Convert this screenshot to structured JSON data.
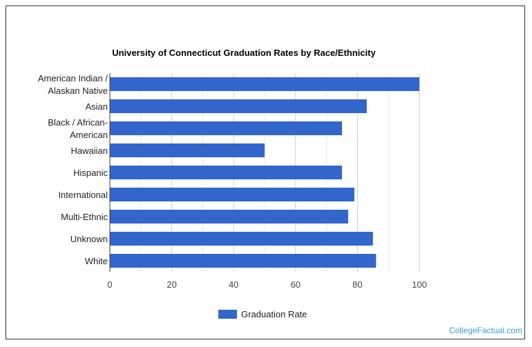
{
  "chart_data": {
    "type": "bar",
    "orientation": "horizontal",
    "title": "University of Connecticut Graduation Rates by Race/Ethnicity",
    "categories": [
      [
        "American Indian /",
        "Alaskan Native"
      ],
      [
        "Asian"
      ],
      [
        "Black / African-",
        "American"
      ],
      [
        "Hawaiian"
      ],
      [
        "Hispanic"
      ],
      [
        "International"
      ],
      [
        "Multi-Ethnic"
      ],
      [
        "Unknown"
      ],
      [
        "White"
      ]
    ],
    "series": [
      {
        "name": "Graduation Rate",
        "values": [
          100,
          83,
          75,
          50,
          75,
          79,
          77,
          85,
          86
        ],
        "color": "#3366cc"
      }
    ],
    "xlim": [
      0,
      100
    ],
    "xticks": [
      0,
      20,
      40,
      60,
      80,
      100
    ],
    "grid": true,
    "legend_position": "bottom"
  },
  "watermark": "CollegeFactual.com"
}
